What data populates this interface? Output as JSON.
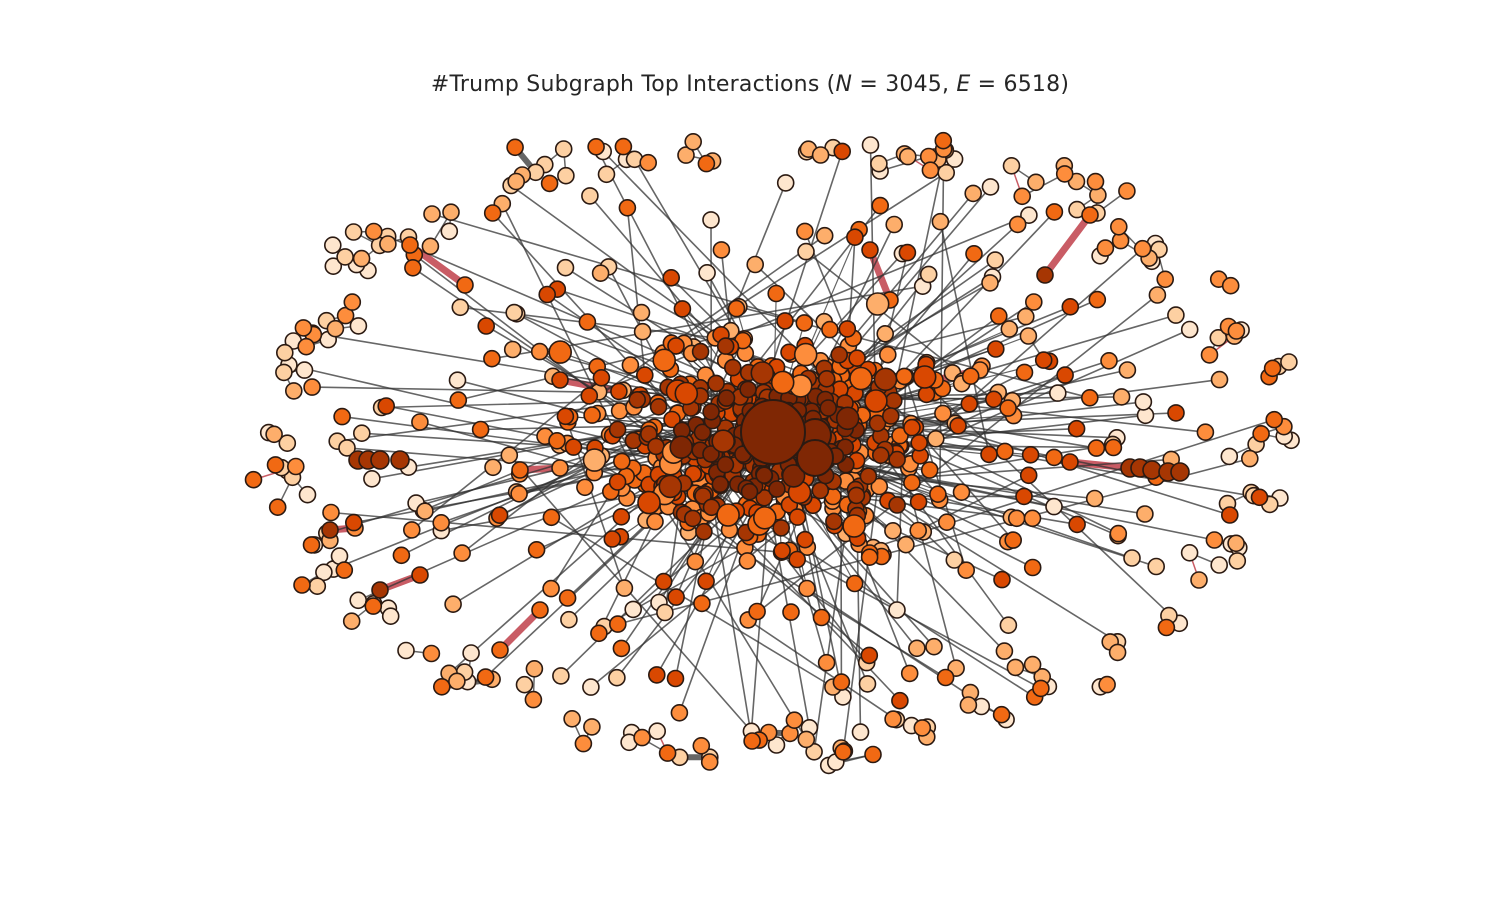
{
  "title": {
    "prefix": "#Trump Subgraph Top Interactions (",
    "n_label": "N",
    "n_value": "3045",
    "separator": ", ",
    "e_label": "E",
    "e_value": "6518",
    "suffix": ")"
  },
  "graph": {
    "node_outline_color": "#2b1a12",
    "palette": [
      "#fee6ce",
      "#fdd0a2",
      "#fdae6b",
      "#fd8d3c",
      "#f16913",
      "#d94801",
      "#a63603",
      "#7f2704"
    ],
    "edge_color_normal": "#333333",
    "edge_color_heavy": "#c0404a"
  }
}
